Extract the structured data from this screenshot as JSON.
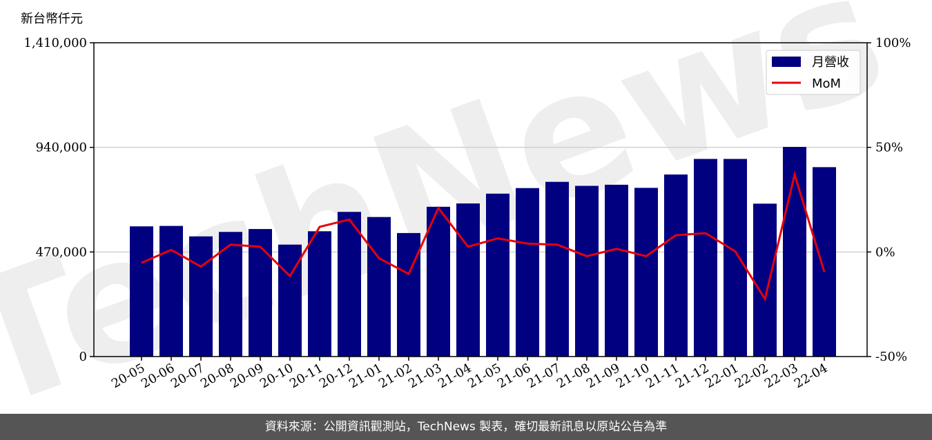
{
  "chart_data": {
    "type": "bar",
    "y_unit_label": "新台幣仟元",
    "categories": [
      "20-05",
      "20-06",
      "20-07",
      "20-08",
      "20-09",
      "20-10",
      "20-11",
      "20-12",
      "21-01",
      "21-02",
      "21-03",
      "21-04",
      "21-05",
      "21-06",
      "21-07",
      "21-08",
      "21-09",
      "21-10",
      "21-11",
      "21-12",
      "22-01",
      "22-02",
      "22-03",
      "22-04"
    ],
    "series": [
      {
        "name": "月營收",
        "type": "bar",
        "axis": "left",
        "color": "#000080",
        "values": [
          585000,
          587000,
          540000,
          560000,
          573000,
          503000,
          563000,
          650000,
          627000,
          555000,
          673000,
          688000,
          732000,
          757000,
          785000,
          767000,
          772000,
          758000,
          818000,
          888000,
          888000,
          687000,
          942000,
          851000
        ]
      },
      {
        "name": "MoM",
        "type": "line",
        "axis": "right",
        "color": "#e8000b",
        "values": [
          -5.2,
          1.0,
          -7.0,
          3.5,
          2.5,
          -11.5,
          12.0,
          15.5,
          -3.0,
          -10.5,
          21.0,
          2.5,
          6.5,
          4.0,
          3.5,
          -2.0,
          1.5,
          -2.0,
          8.0,
          9.0,
          0.3,
          -22.5,
          37.0,
          -9.5
        ]
      }
    ],
    "y_left": {
      "ylim": [
        0,
        1410000
      ],
      "ticks": [
        0,
        470000,
        940000,
        1410000
      ],
      "tick_labels": [
        "0",
        "470,000",
        "940,000",
        "1,410,000"
      ]
    },
    "y_right": {
      "ylim": [
        -50,
        100
      ],
      "ticks": [
        -50,
        0,
        50,
        100
      ],
      "tick_labels": [
        "-50%",
        "0%",
        "50%",
        "100%"
      ]
    },
    "grid": true,
    "legend_position": "top-right"
  },
  "watermark_text": "TechNews",
  "footer_text": "資料來源：公開資訊觀測站，TechNews 製表，確切最新訊息以原站公告為準"
}
